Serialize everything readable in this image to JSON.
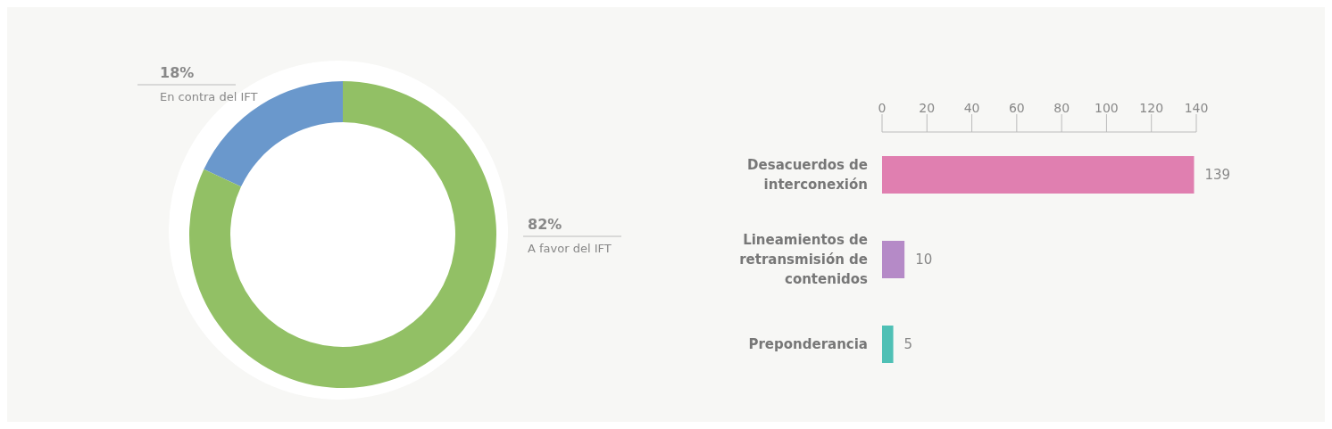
{
  "chart_data": [
    {
      "type": "donut",
      "categories": [
        "En contra del IFT",
        "A favor del IFT"
      ],
      "values": [
        18,
        82
      ],
      "colors": [
        "#6a98cc",
        "#92c065"
      ],
      "value_labels": [
        "18%",
        "82%"
      ],
      "legend": false
    },
    {
      "type": "bar",
      "orientation": "horizontal",
      "categories": [
        "Desacuerdos de interconexión",
        "Lineamientos de retransmisión de contenidos",
        "Preponderancia"
      ],
      "values": [
        139,
        10,
        5
      ],
      "colors": [
        "#e07fb0",
        "#b58ac7",
        "#4fc0b5"
      ],
      "xlim": [
        0,
        140
      ],
      "xticks": [
        0,
        20,
        40,
        60,
        80,
        100,
        120,
        140
      ],
      "data_labels": true,
      "grid": false,
      "legend": false
    }
  ]
}
